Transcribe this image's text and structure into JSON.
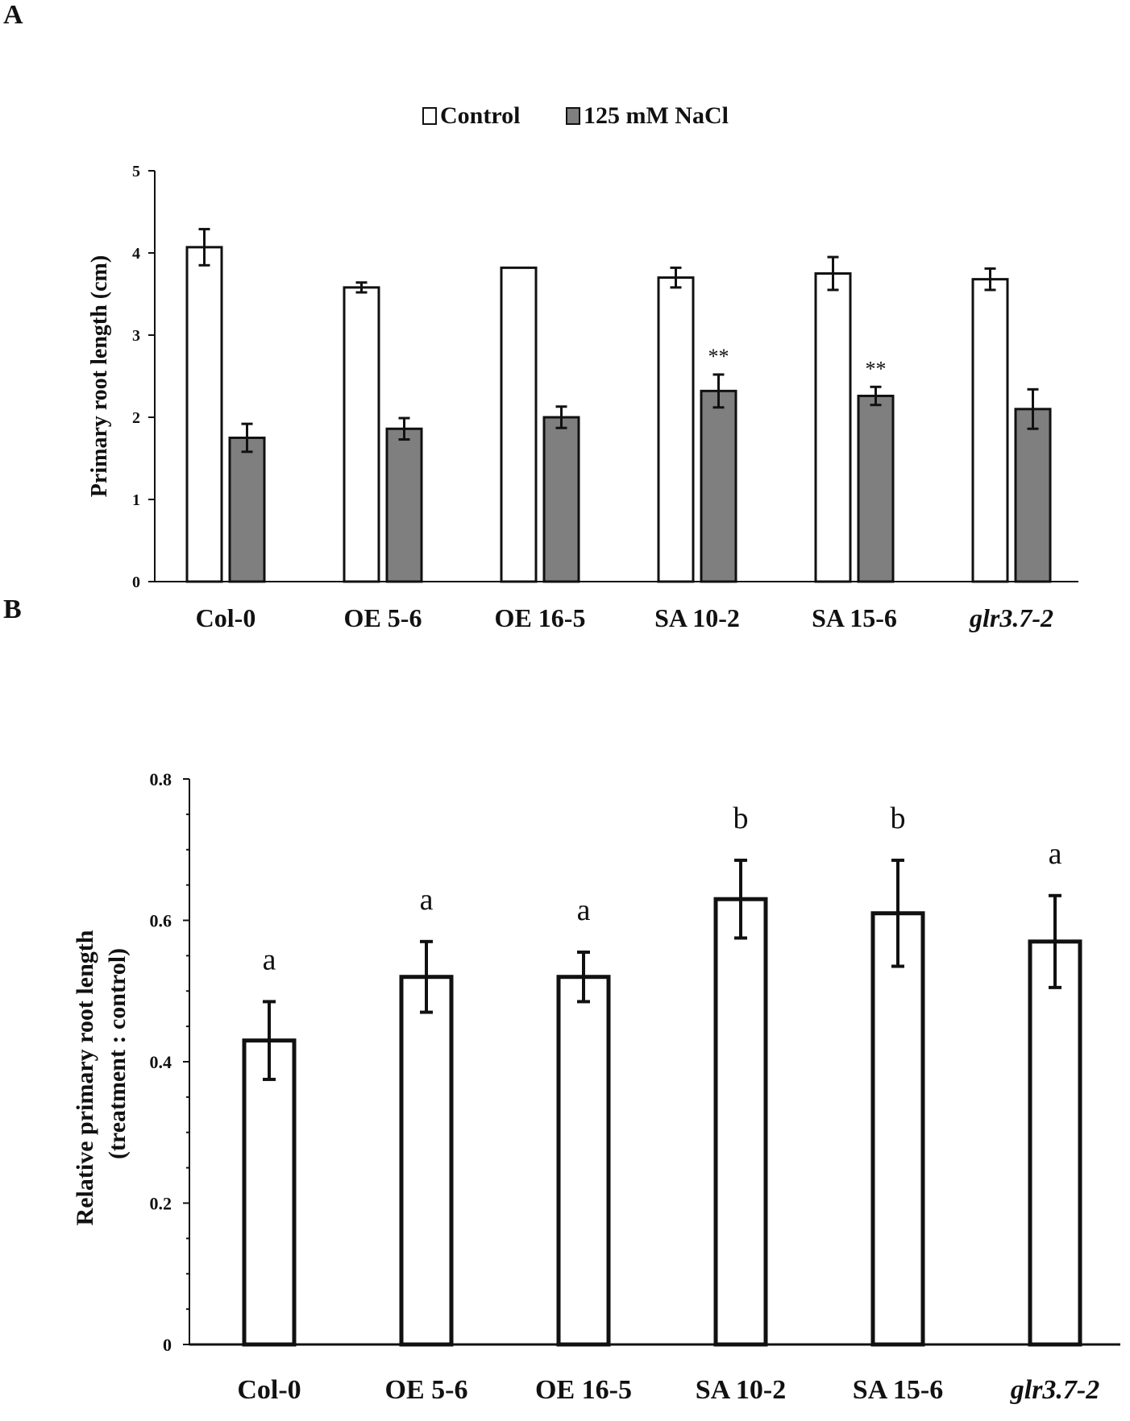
{
  "panels": {
    "a": {
      "label": "A"
    },
    "b": {
      "label": "B"
    }
  },
  "colors": {
    "control_fill": "#ffffff",
    "nacl_fill": "#7f7f7f",
    "stroke": "#111111"
  },
  "chart_data": [
    {
      "type": "bar",
      "panel": "A",
      "title": "",
      "xlabel": "",
      "ylabel": "Primary root length (cm)",
      "ylim": [
        0,
        5
      ],
      "yticks": [
        0,
        1,
        2,
        3,
        4,
        5
      ],
      "categories": [
        "Col-0",
        "OE 5-6",
        "OE 16-5",
        "SA 10-2",
        "SA 15-6",
        "glr3.7-2"
      ],
      "italic_categories": [
        "glr3.7-2"
      ],
      "legend": {
        "position": "top-center",
        "entries": [
          "Control",
          "125 mM NaCl"
        ]
      },
      "series": [
        {
          "name": "Control",
          "color": "#ffffff",
          "values": [
            4.07,
            3.58,
            3.82,
            3.7,
            3.75,
            3.68
          ],
          "errors": [
            0.22,
            0.06,
            0.0,
            0.12,
            0.2,
            0.13
          ],
          "annotations": [
            "",
            "",
            "",
            "",
            "",
            ""
          ]
        },
        {
          "name": "125 mM NaCl",
          "color": "#7f7f7f",
          "values": [
            1.75,
            1.86,
            2.0,
            2.32,
            2.26,
            2.1
          ],
          "errors": [
            0.17,
            0.13,
            0.13,
            0.2,
            0.11,
            0.24
          ],
          "annotations": [
            "",
            "",
            "",
            "**",
            "**",
            ""
          ]
        }
      ]
    },
    {
      "type": "bar",
      "panel": "B",
      "title": "",
      "xlabel": "",
      "ylabel": [
        "Relative primary root length",
        "(treatment : control)"
      ],
      "ylim": [
        0,
        0.8
      ],
      "yticks": [
        0,
        0.2,
        0.4,
        0.6,
        0.8
      ],
      "ytick_labels": [
        "0",
        "0.2",
        "0.4",
        "0.6",
        "0.8"
      ],
      "categories": [
        "Col-0",
        "OE 5-6",
        "OE 16-5",
        "SA 10-2",
        "SA 15-6",
        "glr3.7-2"
      ],
      "italic_categories": [
        "glr3.7-2"
      ],
      "series": [
        {
          "name": "Relative",
          "color": "#ffffff",
          "values": [
            0.43,
            0.52,
            0.52,
            0.63,
            0.61,
            0.57
          ],
          "errors": [
            0.055,
            0.05,
            0.035,
            0.055,
            0.075,
            0.065
          ],
          "annotations": [
            "a",
            "a",
            "a",
            "b",
            "b",
            "a"
          ]
        }
      ]
    }
  ]
}
